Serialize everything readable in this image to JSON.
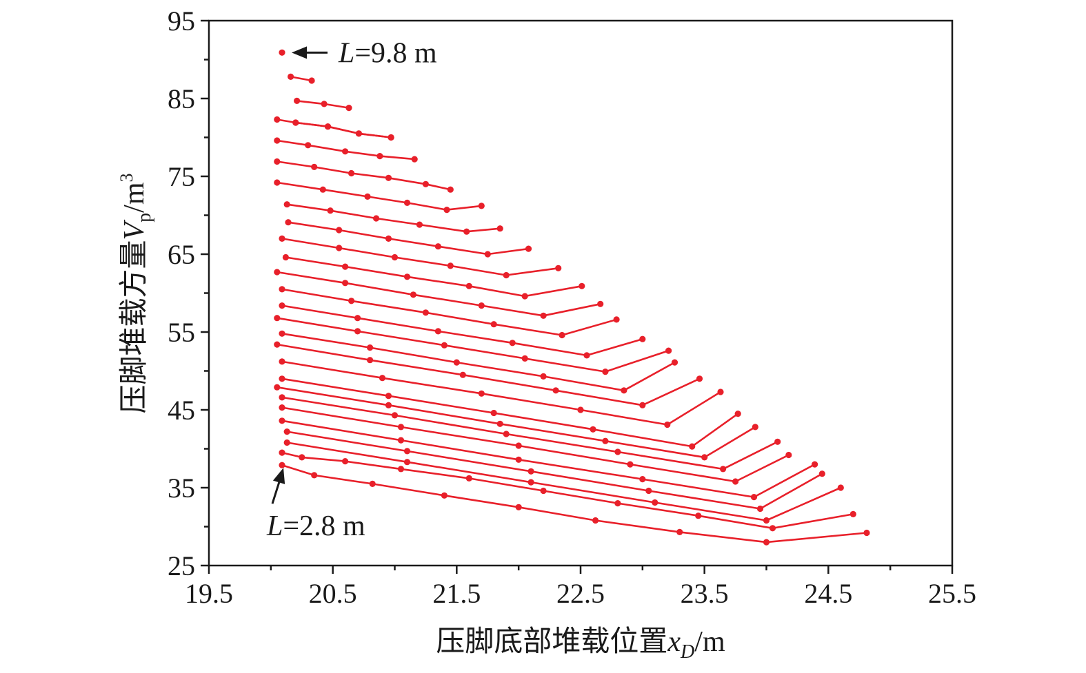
{
  "chart_data": {
    "type": "line",
    "xlabel": "压脚底部堆载位置",
    "xlabel_var": "x",
    "xlabel_sub": "D",
    "xlabel_unit": "/m",
    "ylabel": "压脚堆载方量",
    "ylabel_var": "V",
    "ylabel_sub": "p",
    "ylabel_unit": "/m",
    "ylabel_sup": "3",
    "xlim": [
      19.5,
      25.5
    ],
    "ylim": [
      25,
      95
    ],
    "xticks": [
      "19.5",
      "20.5",
      "21.5",
      "22.5",
      "23.5",
      "24.5",
      "25.5"
    ],
    "yticks": [
      "25",
      "35",
      "45",
      "55",
      "65",
      "75",
      "85",
      "95"
    ],
    "grid": false,
    "legend": "none",
    "series_color": "#e8202a",
    "annotations": [
      {
        "var": "L",
        "text": "=9.8 m",
        "x": 20.09,
        "y": 90.9
      },
      {
        "var": "L",
        "text": "=2.8 m",
        "x": 20.09,
        "y": 37.9
      }
    ],
    "series": [
      {
        "points": [
          [
            20.09,
            90.9
          ]
        ]
      },
      {
        "points": [
          [
            20.16,
            87.8
          ],
          [
            20.33,
            87.3
          ]
        ]
      },
      {
        "points": [
          [
            20.21,
            84.7
          ],
          [
            20.43,
            84.3
          ],
          [
            20.63,
            83.8
          ]
        ]
      },
      {
        "points": [
          [
            20.2,
            81.9
          ],
          [
            20.46,
            81.4
          ],
          [
            20.71,
            80.5
          ],
          [
            20.97,
            80.0
          ]
        ]
      },
      {
        "points": [
          [
            20.05,
            82.3
          ],
          [
            20.2,
            81.9
          ],
          [
            20.46,
            81.4
          ],
          [
            20.71,
            80.5
          ],
          [
            20.97,
            80.0
          ]
        ]
      },
      {
        "points": [
          [
            20.05,
            79.6
          ],
          [
            20.3,
            79.0
          ],
          [
            20.6,
            78.2
          ],
          [
            20.88,
            77.6
          ],
          [
            21.16,
            77.2
          ]
        ]
      },
      {
        "points": [
          [
            20.05,
            76.9
          ],
          [
            20.35,
            76.2
          ],
          [
            20.65,
            75.4
          ],
          [
            20.95,
            74.8
          ],
          [
            21.25,
            74.0
          ],
          [
            21.45,
            73.3
          ]
        ]
      },
      {
        "points": [
          [
            20.05,
            74.2
          ],
          [
            20.42,
            73.3
          ],
          [
            20.78,
            72.4
          ],
          [
            21.1,
            71.6
          ],
          [
            21.42,
            70.7
          ],
          [
            21.7,
            71.2
          ]
        ]
      },
      {
        "points": [
          [
            20.13,
            71.4
          ],
          [
            20.48,
            70.6
          ],
          [
            20.85,
            69.6
          ],
          [
            21.2,
            68.8
          ],
          [
            21.58,
            67.9
          ],
          [
            21.85,
            68.3
          ]
        ]
      },
      {
        "points": [
          [
            20.14,
            69.1
          ],
          [
            20.55,
            68.1
          ],
          [
            20.95,
            67.0
          ],
          [
            21.35,
            66.0
          ],
          [
            21.75,
            65.0
          ],
          [
            22.08,
            65.7
          ]
        ]
      },
      {
        "points": [
          [
            20.09,
            67.0
          ],
          [
            20.55,
            65.8
          ],
          [
            21.0,
            64.6
          ],
          [
            21.45,
            63.5
          ],
          [
            21.9,
            62.3
          ],
          [
            22.32,
            63.2
          ]
        ]
      },
      {
        "points": [
          [
            20.12,
            64.6
          ],
          [
            20.6,
            63.4
          ],
          [
            21.1,
            62.1
          ],
          [
            21.6,
            60.9
          ],
          [
            22.05,
            59.6
          ],
          [
            22.51,
            60.9
          ]
        ]
      },
      {
        "points": [
          [
            20.05,
            62.7
          ],
          [
            20.6,
            61.3
          ],
          [
            21.15,
            59.8
          ],
          [
            21.7,
            58.4
          ],
          [
            22.2,
            57.1
          ],
          [
            22.66,
            58.6
          ]
        ]
      },
      {
        "points": [
          [
            20.09,
            60.5
          ],
          [
            20.65,
            59.0
          ],
          [
            21.25,
            57.5
          ],
          [
            21.8,
            56.0
          ],
          [
            22.35,
            54.6
          ],
          [
            22.79,
            56.6
          ]
        ]
      },
      {
        "points": [
          [
            20.09,
            58.4
          ],
          [
            20.7,
            56.8
          ],
          [
            21.35,
            55.1
          ],
          [
            21.95,
            53.6
          ],
          [
            22.55,
            52.0
          ],
          [
            23.0,
            54.1
          ]
        ]
      },
      {
        "points": [
          [
            20.05,
            56.8
          ],
          [
            20.7,
            55.1
          ],
          [
            21.4,
            53.3
          ],
          [
            22.05,
            51.6
          ],
          [
            22.7,
            49.9
          ],
          [
            23.21,
            52.6
          ]
        ]
      },
      {
        "points": [
          [
            20.09,
            54.8
          ],
          [
            20.8,
            53.0
          ],
          [
            21.5,
            51.1
          ],
          [
            22.2,
            49.3
          ],
          [
            22.85,
            47.5
          ],
          [
            23.26,
            51.1
          ]
        ]
      },
      {
        "points": [
          [
            20.05,
            53.4
          ],
          [
            20.8,
            51.4
          ],
          [
            21.55,
            49.5
          ],
          [
            22.3,
            47.5
          ],
          [
            23.0,
            45.6
          ],
          [
            23.46,
            49.0
          ]
        ]
      },
      {
        "points": [
          [
            20.09,
            51.2
          ],
          [
            20.9,
            49.1
          ],
          [
            21.7,
            47.1
          ],
          [
            22.5,
            45.0
          ],
          [
            23.2,
            43.1
          ],
          [
            23.63,
            47.3
          ]
        ]
      },
      {
        "points": [
          [
            20.09,
            49.0
          ],
          [
            20.95,
            46.8
          ],
          [
            21.8,
            44.6
          ],
          [
            22.6,
            42.5
          ],
          [
            23.4,
            40.3
          ],
          [
            23.77,
            44.5
          ]
        ]
      },
      {
        "points": [
          [
            20.05,
            47.9
          ],
          [
            20.95,
            45.6
          ],
          [
            21.85,
            43.2
          ],
          [
            22.7,
            41.0
          ],
          [
            23.5,
            38.9
          ],
          [
            23.91,
            42.8
          ]
        ]
      },
      {
        "points": [
          [
            20.09,
            46.6
          ],
          [
            21.0,
            44.3
          ],
          [
            21.9,
            41.9
          ],
          [
            22.8,
            39.6
          ],
          [
            23.65,
            37.4
          ],
          [
            24.09,
            40.9
          ]
        ]
      },
      {
        "points": [
          [
            20.09,
            45.3
          ],
          [
            21.05,
            42.8
          ],
          [
            22.0,
            40.4
          ],
          [
            22.9,
            38.0
          ],
          [
            23.75,
            35.8
          ],
          [
            24.18,
            39.2
          ]
        ]
      },
      {
        "points": [
          [
            20.09,
            43.6
          ],
          [
            21.05,
            41.1
          ],
          [
            22.0,
            38.6
          ],
          [
            23.0,
            36.1
          ],
          [
            23.9,
            33.8
          ],
          [
            24.39,
            38.0
          ]
        ]
      },
      {
        "points": [
          [
            20.13,
            42.2
          ],
          [
            21.1,
            39.7
          ],
          [
            22.1,
            37.1
          ],
          [
            23.05,
            34.6
          ],
          [
            23.95,
            32.3
          ],
          [
            24.45,
            36.8
          ]
        ]
      },
      {
        "points": [
          [
            20.13,
            40.8
          ],
          [
            21.1,
            38.3
          ],
          [
            22.1,
            35.7
          ],
          [
            23.1,
            33.1
          ],
          [
            24.0,
            30.8
          ],
          [
            24.6,
            35.0
          ]
        ]
      },
      {
        "points": [
          [
            20.09,
            39.5
          ],
          [
            20.25,
            38.9
          ],
          [
            20.6,
            38.4
          ],
          [
            21.05,
            37.4
          ],
          [
            21.6,
            36.2
          ],
          [
            22.2,
            34.6
          ],
          [
            22.8,
            33.0
          ],
          [
            23.45,
            31.4
          ],
          [
            24.05,
            29.8
          ],
          [
            24.7,
            31.6
          ]
        ]
      },
      {
        "points": [
          [
            20.09,
            37.9
          ],
          [
            20.35,
            36.6
          ],
          [
            20.82,
            35.5
          ],
          [
            21.4,
            34.0
          ],
          [
            22.0,
            32.5
          ],
          [
            22.62,
            30.8
          ],
          [
            23.3,
            29.3
          ],
          [
            24.0,
            28.0
          ],
          [
            24.81,
            29.2
          ]
        ]
      }
    ]
  }
}
